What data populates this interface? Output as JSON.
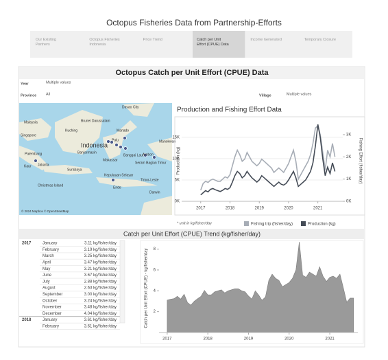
{
  "header": {
    "title": "Octopus Fisheries Data from Partnership-Efforts"
  },
  "tabs": {
    "items": [
      "Our Existing Partners",
      "Octopus Fisheries Indonesia",
      "Price Trend",
      "Catch per Unit Effort (CPUE) Data",
      "Income Generated",
      "Temporary Closure"
    ],
    "active": 3
  },
  "dashboard": {
    "title": "Octopus Catch per Unit Effort (CPUE) Data"
  },
  "filters": {
    "year_label": "Year",
    "year_value": "Multiple values",
    "province_label": "Province",
    "province_value": "All",
    "village_label": "Village",
    "village_value": "Multiple values"
  },
  "map": {
    "labels": [
      "Davao City",
      "Brunei Darussalam",
      "Malaysia",
      "Kuching",
      "Singapore",
      "Indonesia",
      "Manado",
      "Palu",
      "Banjarmasin",
      "Makassar",
      "Banggai Laut",
      "Ambon",
      "Manokwari",
      "Palembang",
      "Jakarta",
      "Surabaya",
      "Kepulauan Selayar",
      "Seram Bagian Timur",
      "Timor-Leste",
      "Christmas Island",
      "Ende",
      "Darwin",
      "Kaur"
    ],
    "attribution": "© 2024 Mapbox © OpenStreetMap"
  },
  "production_chart": {
    "type": "line",
    "title": "Production and Fishing Effort Data",
    "y_label": "Production (kg)",
    "y2_label": "Fishing Effort (fisher/day)",
    "footnote": "* unit in kg/fisher/day",
    "xlim": [
      2016.35,
      2021.85
    ],
    "xticks": [
      2017,
      2018,
      2019,
      2020,
      2021
    ],
    "ylim": [
      0,
      19000
    ],
    "yticks": [
      {
        "value": 0,
        "label": "0K"
      },
      {
        "value": 5000,
        "label": "5K"
      },
      {
        "value": 10000,
        "label": "10K"
      },
      {
        "value": 15000,
        "label": "15K"
      }
    ],
    "y2lim": [
      0,
      3650
    ],
    "y2ticks": [
      {
        "value": 0,
        "label": "0K"
      },
      {
        "value": 1000,
        "label": "1K"
      },
      {
        "value": 2000,
        "label": "2K"
      },
      {
        "value": 3000,
        "label": "3K"
      }
    ],
    "x": [
      2017.0,
      2017.083,
      2017.167,
      2017.25,
      2017.333,
      2017.417,
      2017.5,
      2017.583,
      2017.667,
      2017.75,
      2017.833,
      2017.917,
      2018.0,
      2018.083,
      2018.167,
      2018.25,
      2018.333,
      2018.417,
      2018.5,
      2018.583,
      2018.667,
      2018.75,
      2018.833,
      2018.917,
      2019.0,
      2019.083,
      2019.167,
      2019.25,
      2019.333,
      2019.417,
      2019.5,
      2019.583,
      2019.667,
      2019.75,
      2019.833,
      2019.917,
      2020.0,
      2020.083,
      2020.167,
      2020.25,
      2020.333,
      2020.417,
      2020.5,
      2020.583,
      2020.667,
      2020.75,
      2020.833,
      2020.917,
      2021.0,
      2021.083,
      2021.167,
      2021.25,
      2021.333,
      2021.417,
      2021.5,
      2021.583
    ],
    "series": [
      {
        "name": "Fishing trip (fisher/day)",
        "color": "#a7adb6",
        "axis": "y2",
        "values": [
          500,
          800,
          900,
          850,
          950,
          1000,
          950,
          900,
          900,
          1000,
          1100,
          1050,
          1200,
          1600,
          2000,
          2300,
          2100,
          1800,
          1900,
          2200,
          2000,
          1800,
          1700,
          1600,
          1700,
          1900,
          1800,
          1700,
          1600,
          1500,
          1300,
          1400,
          1500,
          1400,
          1300,
          1500,
          1700,
          2000,
          2300,
          1800,
          1000,
          1200,
          1400,
          1600,
          1800,
          2100,
          2600,
          3300,
          3400,
          3000,
          2200,
          1400,
          2300,
          2000,
          2600,
          2000
        ]
      },
      {
        "name": "Production (kg)",
        "color": "#454c57",
        "values": [
          1500,
          2000,
          2500,
          2200,
          2800,
          3000,
          2700,
          2500,
          2300,
          2600,
          3000,
          2800,
          3200,
          4500,
          6000,
          7000,
          6500,
          5500,
          6000,
          7000,
          6200,
          5500,
          5000,
          4500,
          5000,
          6000,
          5500,
          5000,
          4500,
          4000,
          3500,
          4000,
          4500,
          4000,
          3800,
          4200,
          5000,
          6000,
          7000,
          5500,
          3500,
          4000,
          4500,
          5000,
          6000,
          7000,
          9000,
          13000,
          18000,
          15000,
          10000,
          6000,
          8000,
          6500,
          9000,
          7000
        ]
      }
    ]
  },
  "cpue_title": "Catch per Unit Effort (CPUE) Trend (kg/fisher/day)",
  "cpue_table": {
    "rows": [
      [
        "2017",
        "January",
        "3.11 kg/fisher/day"
      ],
      [
        "",
        "February",
        "3.19 kg/fisher/day"
      ],
      [
        "",
        "March",
        "3.25 kg/fisher/day"
      ],
      [
        "",
        "April",
        "3.47 kg/fisher/day"
      ],
      [
        "",
        "May",
        "3.21 kg/fisher/day"
      ],
      [
        "",
        "June",
        "3.67 kg/fisher/day"
      ],
      [
        "",
        "July",
        "2.88 kg/fisher/day"
      ],
      [
        "",
        "August",
        "2.63 kg/fisher/day"
      ],
      [
        "",
        "September",
        "3.00 kg/fisher/day"
      ],
      [
        "",
        "October",
        "3.24 kg/fisher/day"
      ],
      [
        "",
        "November",
        "3.48 kg/fisher/day"
      ],
      [
        "",
        "December",
        "4.04 kg/fisher/day"
      ],
      [
        "2018",
        "January",
        "3.61 kg/fisher/day"
      ],
      [
        "",
        "February",
        "3.61 kg/fisher/day"
      ]
    ]
  },
  "cpue_chart": {
    "type": "area",
    "y_label": "Catch per Unit Effort (CPUE) - kg/fisher/day",
    "color": "#9a9a9a",
    "xlim": [
      2016.8,
      2021.69
    ],
    "xticks": [
      2017,
      2018,
      2019,
      2020,
      2021
    ],
    "ylim": [
      0,
      8.5
    ],
    "yticks": [
      2,
      4,
      6,
      8
    ],
    "x": [
      2017.0,
      2017.083,
      2017.167,
      2017.25,
      2017.333,
      2017.417,
      2017.5,
      2017.583,
      2017.667,
      2017.75,
      2017.833,
      2017.917,
      2018.0,
      2018.083,
      2018.167,
      2018.25,
      2018.333,
      2018.417,
      2018.5,
      2018.583,
      2018.667,
      2018.75,
      2018.833,
      2018.917,
      2019.0,
      2019.083,
      2019.167,
      2019.25,
      2019.333,
      2019.417,
      2019.5,
      2019.583,
      2019.667,
      2019.75,
      2019.833,
      2019.917,
      2020.0,
      2020.083,
      2020.167,
      2020.25,
      2020.333,
      2020.417,
      2020.5,
      2020.583,
      2020.667,
      2020.75,
      2020.833,
      2020.917,
      2021.0,
      2021.083,
      2021.167,
      2021.25,
      2021.333,
      2021.417,
      2021.5,
      2021.583
    ],
    "values": [
      3.11,
      3.19,
      3.25,
      3.47,
      3.21,
      3.67,
      2.88,
      2.63,
      3.0,
      3.24,
      3.48,
      4.04,
      3.61,
      3.61,
      3.9,
      4.0,
      4.1,
      3.8,
      4.0,
      4.1,
      4.2,
      4.2,
      4.0,
      3.9,
      3.5,
      3.2,
      4.0,
      3.6,
      3.1,
      3.4,
      5.0,
      5.6,
      5.2,
      5.0,
      4.4,
      4.6,
      4.8,
      5.2,
      6.0,
      8.7,
      5.5,
      5.3,
      5.8,
      5.6,
      5.4,
      6.3,
      5.4,
      4.9,
      5.3,
      5.4,
      5.2,
      5.6,
      4.3,
      2.9,
      3.3,
      3.3
    ]
  }
}
